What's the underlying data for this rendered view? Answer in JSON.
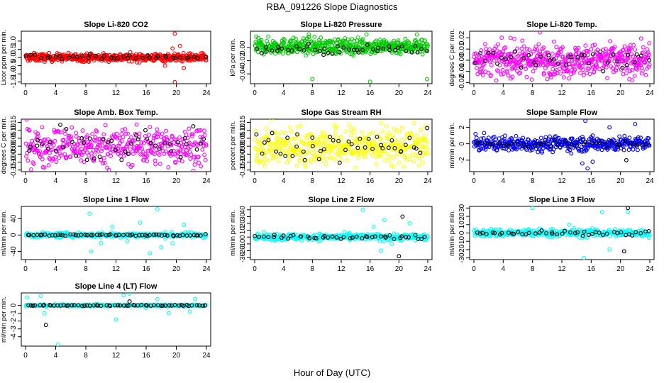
{
  "figure": {
    "title": "RBA_091226  Slope Diagnostics",
    "xlabel": "Hour of Day (UTC)"
  },
  "chart_data": [
    {
      "id": "co2",
      "type": "scatter",
      "title": "Slope Li-820 CO2",
      "ylabel": "Licor ppm per min.",
      "xlim": [
        0,
        24
      ],
      "xticks": [
        "0",
        "4",
        "8",
        "12",
        "16",
        "20",
        "24"
      ],
      "ylim": [
        -1.6,
        1.6
      ],
      "yticks": [
        1.0,
        0.5,
        0.0,
        -0.5,
        -1.0,
        -1.5
      ],
      "ytick_labels": [
        "1.0",
        "0.5",
        "0.0",
        "-0.5",
        "-1.0",
        "-1.5"
      ],
      "series": [
        {
          "color": "#ff0000",
          "spread": 0.12,
          "density": 500,
          "outliers": [
            [
              19.8,
              1.45
            ],
            [
              19.8,
              -1.5
            ],
            [
              21.0,
              -0.65
            ],
            [
              20.5,
              0.7
            ],
            [
              19.5,
              0.55
            ],
            [
              18.5,
              -0.5
            ]
          ]
        },
        {
          "color": "#000000",
          "spread": 0.08,
          "density": 40,
          "outliers": []
        }
      ]
    },
    {
      "id": "pressure",
      "type": "scatter",
      "title": "Slope Li-820 Pressure",
      "ylabel": "kPa per min.",
      "xlim": [
        0,
        24
      ],
      "xticks": [
        "0",
        "4",
        "8",
        "12",
        "16",
        "20",
        "24"
      ],
      "ylim": [
        -0.055,
        0.025
      ],
      "yticks": [
        0.0,
        -0.02,
        -0.04
      ],
      "ytick_labels": [
        "0.00",
        "-0.02",
        "-0.04"
      ],
      "series": [
        {
          "color": "#00cc00",
          "spread": 0.006,
          "density": 500,
          "center": 0.002,
          "outliers": [
            [
              8.0,
              -0.048
            ],
            [
              16.0,
              -0.052
            ],
            [
              23.9,
              -0.048
            ],
            [
              7.5,
              0.02
            ],
            [
              15.5,
              0.02
            ],
            [
              22.5,
              0.02
            ]
          ]
        },
        {
          "color": "#000000",
          "spread": 0.004,
          "density": 45,
          "center": -0.003,
          "outliers": []
        }
      ]
    },
    {
      "id": "temp",
      "type": "scatter",
      "title": "Slope Li-820 Temp.",
      "ylabel": "degrees C per min.",
      "xlim": [
        0,
        24
      ],
      "xticks": [
        "0",
        "4",
        "8",
        "12",
        "16",
        "20",
        "24"
      ],
      "ylim": [
        -0.021,
        0.026
      ],
      "yticks": [
        0.02,
        0.01,
        0.0,
        -0.01,
        -0.02
      ],
      "ytick_labels": [
        "0.02",
        "0.01",
        "0.00",
        "-0.01",
        "-0.02"
      ],
      "series": [
        {
          "color": "#ff00ff",
          "spread": 0.007,
          "density": 520,
          "outliers": [
            [
              9.0,
              0.025
            ],
            [
              7.2,
              -0.015
            ],
            [
              18.2,
              -0.016
            ],
            [
              21.2,
              -0.017
            ],
            [
              5.0,
              0.02
            ]
          ]
        },
        {
          "color": "#000000",
          "spread": 0.005,
          "density": 40,
          "outliers": []
        }
      ]
    },
    {
      "id": "ambbox",
      "type": "scatter",
      "title": "Slope Amb. Box Temp.",
      "ylabel": "degrees C per min.",
      "xlim": [
        0,
        24
      ],
      "xticks": [
        "0",
        "4",
        "8",
        "12",
        "16",
        "20",
        "24"
      ],
      "ylim": [
        -0.16,
        0.17
      ],
      "yticks": [
        0.15,
        0.1,
        0.05,
        0.0,
        -0.05,
        -0.1,
        -0.15
      ],
      "ytick_labels": [
        "0.15",
        "0.10",
        "0.05",
        "0.00",
        "-0.05",
        "-0.10",
        "-0.15"
      ],
      "series": [
        {
          "color": "#ff00ff",
          "spread": 0.06,
          "density": 420,
          "outliers": []
        },
        {
          "color": "#000000",
          "spread": 0.05,
          "density": 45,
          "outliers": []
        }
      ]
    },
    {
      "id": "gasrh",
      "type": "scatter",
      "title": "Slope Gas Stream RH",
      "ylabel": "percent per min.",
      "xlim": [
        0,
        24
      ],
      "xticks": [
        "0",
        "4",
        "8",
        "12",
        "16",
        "20",
        "24"
      ],
      "ylim": [
        -0.16,
        0.17
      ],
      "yticks": [
        0.15,
        0.1,
        0.05,
        0.0,
        -0.05,
        -0.1,
        -0.15
      ],
      "ytick_labels": [
        "0.15",
        "0.10",
        "0.05",
        "0.00",
        "-0.05",
        "-0.10",
        "-0.15"
      ],
      "series": [
        {
          "color": "#ffff00",
          "spread": 0.06,
          "density": 440,
          "outliers": []
        },
        {
          "color": "#000000",
          "spread": 0.05,
          "density": 45,
          "outliers": []
        }
      ]
    },
    {
      "id": "sample",
      "type": "scatter",
      "title": "Slope Sample Flow",
      "ylabel": "ml/min per min.",
      "xlim": [
        0,
        24
      ],
      "xticks": [
        "0",
        "4",
        "8",
        "12",
        "16",
        "20",
        "24"
      ],
      "ylim": [
        -3.4,
        3.0
      ],
      "yticks": [
        2,
        0,
        -2
      ],
      "ytick_labels": [
        "2",
        "0",
        "-2"
      ],
      "series": [
        {
          "color": "#0000ff",
          "spread": 0.45,
          "density": 420,
          "outliers": [
            [
              15.5,
              -3.0
            ],
            [
              15.2,
              2.8
            ],
            [
              22.0,
              2.4
            ],
            [
              16.2,
              -2.2
            ],
            [
              18.5,
              2.0
            ],
            [
              14.8,
              -2.4
            ]
          ]
        },
        {
          "color": "#000000",
          "spread": 0.2,
          "density": 40,
          "outliers": [
            [
              20.8,
              -2.0
            ]
          ]
        }
      ]
    },
    {
      "id": "line1",
      "type": "scatter",
      "title": "Slope Line 1 Flow",
      "ylabel": "ml/min per min.",
      "xlim": [
        0,
        24
      ],
      "xticks": [
        "0",
        "4",
        "8",
        "12",
        "16",
        "20",
        "24"
      ],
      "ylim": [
        -60,
        70
      ],
      "yticks": [
        40,
        0,
        -40
      ],
      "ytick_labels": [
        "40",
        "0",
        "-40"
      ],
      "series": [
        {
          "color": "#00ffff",
          "spread": 3,
          "density": 300,
          "outliers": [
            [
              8.5,
              52
            ],
            [
              8.7,
              -40
            ],
            [
              17.5,
              63
            ],
            [
              11.5,
              20
            ],
            [
              13.5,
              -15
            ],
            [
              15.2,
              30
            ],
            [
              18.0,
              -30
            ],
            [
              21.0,
              25
            ],
            [
              10.0,
              -20
            ],
            [
              16.5,
              -45
            ],
            [
              19.5,
              -20
            ]
          ]
        },
        {
          "color": "#000000",
          "spread": 1,
          "density": 60,
          "outliers": []
        }
      ]
    },
    {
      "id": "line2",
      "type": "scatter",
      "title": "Slope Line 2 Flow",
      "ylabel": "ml/min per min.",
      "xlim": [
        0,
        24
      ],
      "xticks": [
        "0",
        "4",
        "8",
        "12",
        "16",
        "20",
        "24"
      ],
      "ylim": [
        -33,
        45
      ],
      "yticks": [
        40,
        30,
        20,
        10,
        0,
        -10,
        -20,
        -30
      ],
      "ytick_labels": [
        "40",
        "30",
        "20",
        "10",
        "0",
        "-10",
        "-20",
        "-30"
      ],
      "series": [
        {
          "color": "#00ffff",
          "spread": 2.5,
          "density": 320,
          "outliers": [
            [
              15.0,
              40
            ],
            [
              18.0,
              25
            ],
            [
              17.5,
              -20
            ],
            [
              16.5,
              15
            ],
            [
              21.5,
              20
            ],
            [
              19.0,
              -10
            ]
          ]
        },
        {
          "color": "#000000",
          "spread": 1.5,
          "density": 45,
          "outliers": [
            [
              20.5,
              30
            ],
            [
              20.0,
              -28
            ]
          ]
        }
      ]
    },
    {
      "id": "line3",
      "type": "scatter",
      "title": "Slope Line 3 Flow",
      "ylabel": "ml/min per min.",
      "xlim": [
        0,
        24
      ],
      "xticks": [
        "0",
        "4",
        "8",
        "12",
        "16",
        "20",
        "24"
      ],
      "ylim": [
        -32,
        32
      ],
      "yticks": [
        30,
        20,
        10,
        0,
        -10,
        -20,
        -30
      ],
      "ytick_labels": [
        "30",
        "20",
        "10",
        "0",
        "-10",
        "-20",
        "-30"
      ],
      "series": [
        {
          "color": "#00ffff",
          "spread": 2.5,
          "density": 320,
          "outliers": [
            [
              8.0,
              30
            ],
            [
              15.0,
              -30
            ],
            [
              17.5,
              25
            ],
            [
              18.5,
              -20
            ],
            [
              21.0,
              25
            ],
            [
              13.0,
              10
            ]
          ]
        },
        {
          "color": "#000000",
          "spread": 1.5,
          "density": 45,
          "outliers": [
            [
              21.0,
              30
            ],
            [
              20.5,
              -22
            ]
          ]
        }
      ]
    },
    {
      "id": "line4",
      "type": "scatter",
      "title": "Slope Line 4 (LT) Flow",
      "ylabel": "ml/min per min.",
      "xlim": [
        0,
        24
      ],
      "xticks": [
        "0",
        "4",
        "8",
        "12",
        "16",
        "20",
        "24"
      ],
      "ylim": [
        -5.2,
        1.6
      ],
      "yticks": [
        0,
        -1,
        -2,
        -3,
        -4
      ],
      "ytick_labels": [
        "0",
        "-1",
        "-2",
        "-3",
        "-4"
      ],
      "series": [
        {
          "color": "#00ffff",
          "spread": 0.06,
          "density": 260,
          "outliers": [
            [
              0.2,
              1.0
            ],
            [
              2.0,
              1.2
            ],
            [
              2.5,
              -1.0
            ],
            [
              4.3,
              -5.0
            ],
            [
              13.0,
              1.3
            ],
            [
              13.8,
              1.5
            ],
            [
              17.5,
              0.8
            ],
            [
              19.0,
              -1.0
            ],
            [
              21.8,
              -0.8
            ],
            [
              12.0,
              -1.8
            ],
            [
              16.0,
              -0.3
            ],
            [
              22.5,
              0.8
            ]
          ]
        },
        {
          "color": "#000000",
          "spread": 0.03,
          "density": 60,
          "outliers": [
            [
              2.7,
              -2.5
            ],
            [
              13.8,
              0.5
            ]
          ]
        }
      ]
    }
  ]
}
